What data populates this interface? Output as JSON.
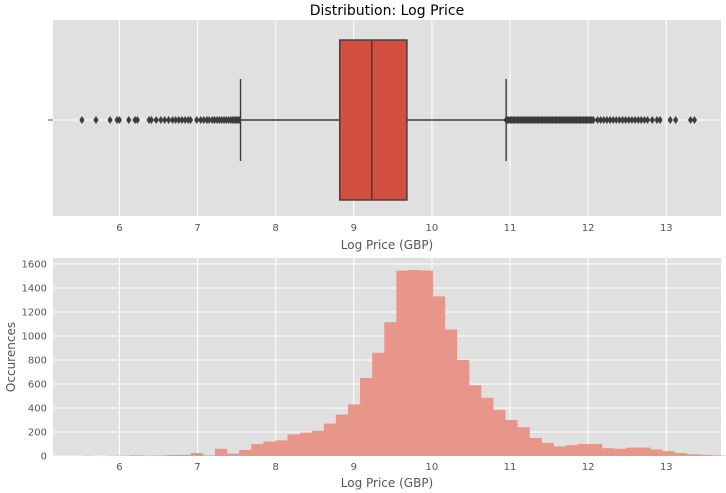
{
  "chart_data": [
    {
      "type": "box",
      "title": "Distribution: Log Price",
      "xlabel": "Log Price (GBP)",
      "ylabel": "",
      "xlim": [
        5.15,
        13.7
      ],
      "xticks": [
        "6",
        "7",
        "8",
        "9",
        "10",
        "11",
        "12",
        "13"
      ],
      "yticks": [
        ""
      ],
      "grid": true,
      "colors": {
        "box": "#d24e3f",
        "line": "#3b3b3b",
        "background": "#e0e0e0",
        "grid": "#ffffff"
      },
      "box": {
        "whisker_low": 7.55,
        "q1": 8.82,
        "median": 9.23,
        "q3": 9.68,
        "whisker_high": 10.95
      },
      "outliers_low": [
        5.52,
        5.7,
        5.88,
        5.97,
        6.0,
        6.12,
        6.2,
        6.23,
        6.38,
        6.41,
        6.47,
        6.53,
        6.58,
        6.63,
        6.68,
        6.72,
        6.76,
        6.8,
        6.84,
        6.88,
        6.91,
        6.99,
        7.04,
        7.08,
        7.12,
        7.15,
        7.19,
        7.22,
        7.25,
        7.28,
        7.31,
        7.34,
        7.37,
        7.4,
        7.43,
        7.45,
        7.47,
        7.49,
        7.51,
        7.53
      ],
      "outliers_high_dense": [
        10.95,
        12.08
      ],
      "outliers_high": [
        12.12,
        12.16,
        12.2,
        12.24,
        12.28,
        12.32,
        12.36,
        12.4,
        12.44,
        12.48,
        12.52,
        12.56,
        12.6,
        12.64,
        12.68,
        12.72,
        12.76,
        12.82,
        12.88,
        12.92,
        13.05,
        13.12,
        13.31,
        13.36
      ]
    },
    {
      "type": "bar",
      "title": "",
      "xlabel": "Log Price (GBP)",
      "ylabel": "Occurences",
      "xlim": [
        5.15,
        13.7
      ],
      "ylim": [
        0,
        1650
      ],
      "xticks": [
        "6",
        "7",
        "8",
        "9",
        "10",
        "11",
        "12",
        "13"
      ],
      "yticks": [
        "0",
        "200",
        "400",
        "600",
        "800",
        "1000",
        "1200",
        "1400",
        "1600"
      ],
      "grid": true,
      "colors": {
        "bar": "#e8968a",
        "background": "#e0e0e0",
        "grid": "#ffffff"
      },
      "bin_start": 5.52,
      "bin_width": 0.1548,
      "values": [
        2,
        0,
        2,
        3,
        5,
        3,
        4,
        8,
        10,
        25,
        5,
        60,
        20,
        50,
        100,
        120,
        130,
        180,
        195,
        210,
        270,
        345,
        430,
        650,
        860,
        1115,
        1545,
        1550,
        1545,
        1330,
        1055,
        800,
        590,
        485,
        385,
        300,
        240,
        150,
        110,
        80,
        90,
        100,
        100,
        65,
        60,
        70,
        70,
        55,
        40,
        25,
        15,
        10,
        4,
        2
      ]
    }
  ]
}
